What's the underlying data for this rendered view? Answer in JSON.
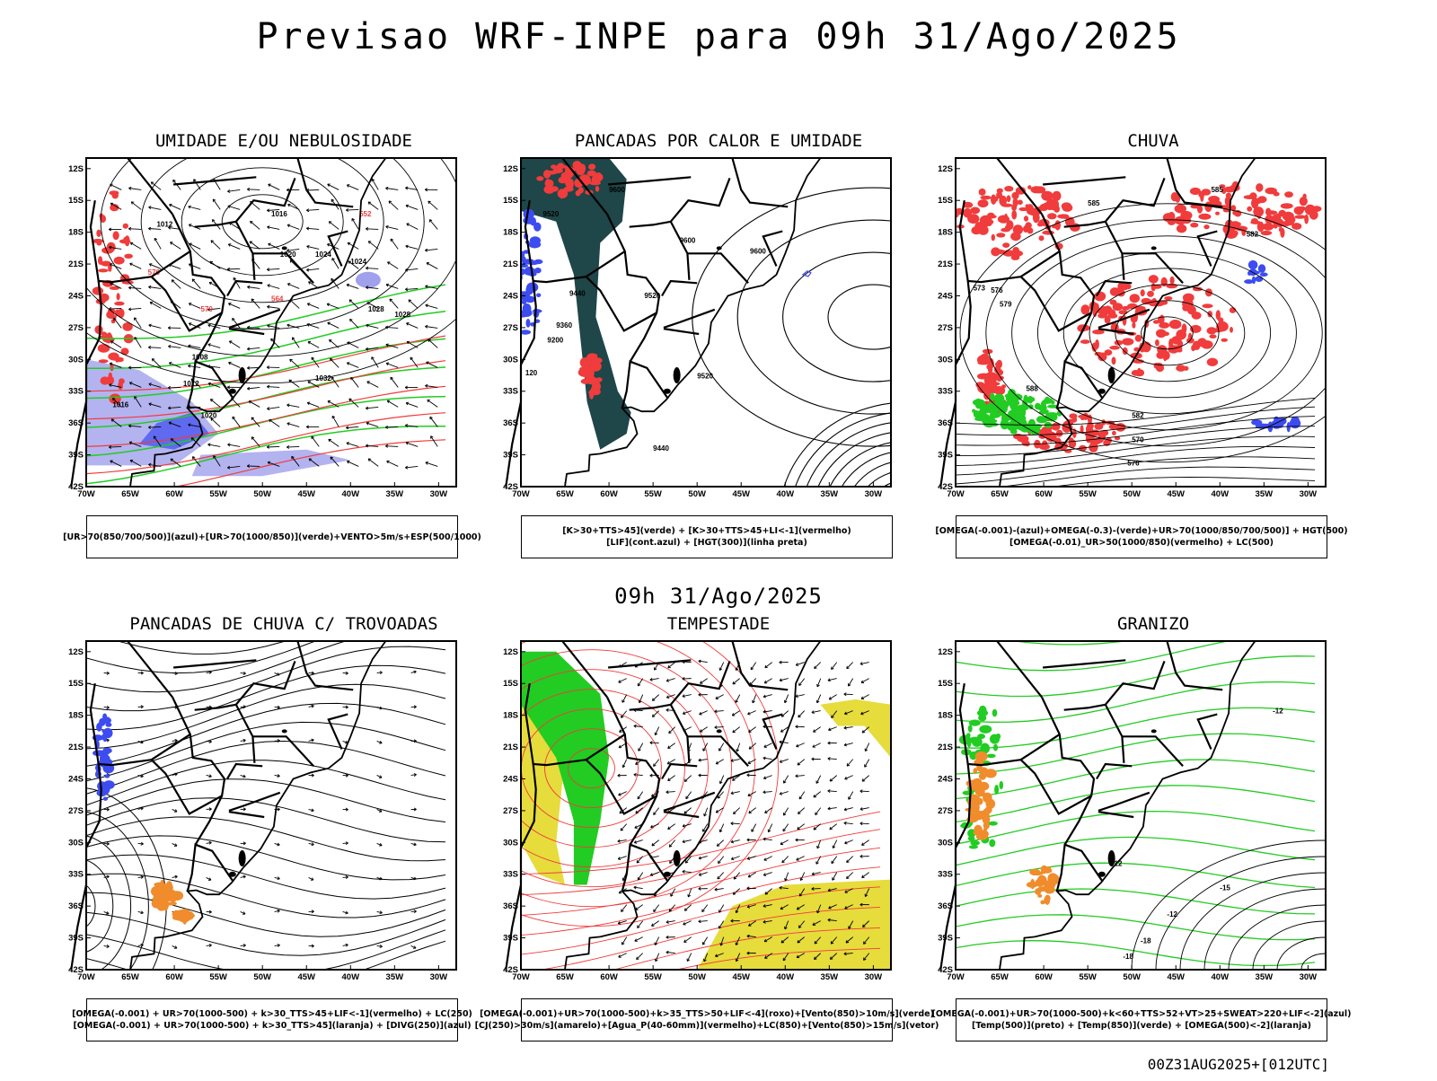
{
  "title": "Previsao WRF-INPE  para 09h 31/Ago/2025",
  "middle_title": "09h 31/Ago/2025",
  "footer": "00Z31AUG2025+[012UTC]",
  "axes": {
    "lat_labels": [
      "12S",
      "15S",
      "18S",
      "21S",
      "24S",
      "27S",
      "30S",
      "33S",
      "36S",
      "39S",
      "42S"
    ],
    "lon_labels": [
      "70W",
      "65W",
      "60W",
      "55W",
      "50W",
      "45W",
      "40W",
      "35W",
      "30W"
    ]
  },
  "colors": {
    "blue": "#3c4cf0",
    "green": "#22cc22",
    "red": "#f03c3c",
    "orange": "#f08c2c",
    "yellow": "#e6dc3c",
    "darkteal": "#1f4648",
    "lavender": "#a0a0ec"
  },
  "panels": [
    {
      "id": "umidade",
      "title": "UMIDADE E/OU NEBULOSIDADE",
      "legend": [
        "[UR>70(850/700/500)](azul)+[UR>70(1000/850)](verde)+VENTO>5m/s+ESP(500/1000)"
      ],
      "contour_labels": [
        "1012",
        "1016",
        "1020",
        "1024",
        "1028",
        "1032",
        "1008",
        "1016",
        "1020",
        "1024",
        "1028",
        "1012",
        "576",
        "570",
        "564",
        "552"
      ]
    },
    {
      "id": "pancadas_calor",
      "title": "PANCADAS POR CALOR E UMIDADE",
      "legend": [
        "[K>30+TTS>45](verde) + [K>30+TTS>45+LI<-1](vermelho)",
        "[LIF](cont.azul) + [HGT(300)](linha preta)"
      ],
      "contour_labels": [
        "9600",
        "9520",
        "9440",
        "9360",
        "9200",
        "9600",
        "9520",
        "9520",
        "9440",
        "9600",
        "120"
      ]
    },
    {
      "id": "chuva",
      "title": "CHUVA",
      "legend": [
        "[OMEGA(-0.001)-(azul)+OMEGA(-0.3)-(verde)+UR>70(1000/850/700/500)] + HGT(500)",
        "[OMEGA(-0.01)_UR>50(1000/850)(vermelho) + LC(500)"
      ],
      "contour_labels": [
        "585",
        "585",
        "582",
        "573",
        "576",
        "579",
        "582",
        "570",
        "576",
        "588"
      ]
    },
    {
      "id": "pancadas_trovoadas",
      "title": "PANCADAS DE CHUVA C/ TROVOADAS",
      "legend": [
        "[OMEGA(-0.001) + UR>70(1000-500) + k>30_TTS>45+LIF<-1](vermelho) + LC(250)",
        "[OMEGA(-0.001) + UR>70(1000-500) + k>30_TTS>45](laranja) + [DIVG(250)](azul)"
      ],
      "contour_labels": []
    },
    {
      "id": "tempestade",
      "title": "TEMPESTADE",
      "legend": [
        "[OMEGA(-0.001)+UR>70(1000-500)+k>35_TTS>50+LIF<-4](roxo)+[Vento(850)>10m/s](verde)",
        "[CJ(250)>30m/s](amarelo)+[Agua_P(40-60mm)](vermelho)+LC(850)+[Vento(850)>15m/s](vetor)"
      ],
      "contour_labels": []
    },
    {
      "id": "granizo",
      "title": "GRANIZO",
      "legend": [
        "[OMEGA(-0.001)+UR>70(1000-500)+k<60+TTS>52+VT>25+SWEAT>220+LIF<-2](azul)",
        "[Temp(500)](preto) + [Temp(850)](verde) + [OMEGA(500)<-2](laranja)"
      ],
      "contour_labels": [
        "-12",
        "12",
        "-15",
        "-12",
        "-18",
        "-18"
      ]
    }
  ]
}
